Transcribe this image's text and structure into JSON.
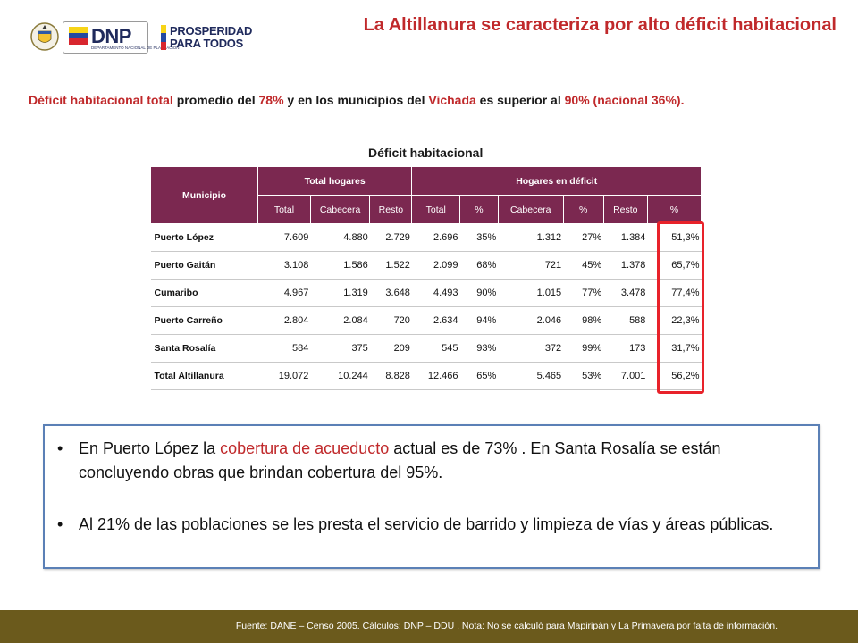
{
  "header": {
    "dnp_logo_text": "DNP",
    "dnp_logo_subtext": "DEPARTAMENTO NACIONAL DE PLANEACIÓN",
    "prosperidad_line1": "PROSPERIDAD",
    "prosperidad_line2": "PARA TODOS",
    "title": "La Altillanura se caracteriza por alto déficit habitacional"
  },
  "subtitle": {
    "part1": "Déficit habitacional total",
    "part2": " promedio del ",
    "part3": "78%",
    "part4": " y en los municipios del ",
    "part5": "Vichada",
    "part6": " es superior al ",
    "part7": "90% (nacional 36%)."
  },
  "table": {
    "title": "Déficit habitacional",
    "header_municipio": "Municipio",
    "header_total_hogares": "Total hogares",
    "header_hogares_deficit": "Hogares en déficit",
    "subheaders": [
      "Total",
      "Cabecera",
      "Resto",
      "Total",
      "%",
      "Cabecera",
      "%",
      "Resto",
      "%"
    ],
    "rows": [
      {
        "municipio": "Puerto López",
        "values": [
          "7.609",
          "4.880",
          "2.729",
          "2.696",
          "35%",
          "1.312",
          "27%",
          "1.384",
          "51,3%"
        ]
      },
      {
        "municipio": "Puerto Gaitán",
        "values": [
          "3.108",
          "1.586",
          "1.522",
          "2.099",
          "68%",
          "721",
          "45%",
          "1.378",
          "65,7%"
        ]
      },
      {
        "municipio": "Cumaribo",
        "values": [
          "4.967",
          "1.319",
          "3.648",
          "4.493",
          "90%",
          "1.015",
          "77%",
          "3.478",
          "77,4%"
        ]
      },
      {
        "municipio": "Puerto Carreño",
        "values": [
          "2.804",
          "2.084",
          "720",
          "2.634",
          "94%",
          "2.046",
          "98%",
          "588",
          "22,3%"
        ]
      },
      {
        "municipio": "Santa Rosalía",
        "values": [
          "584",
          "375",
          "209",
          "545",
          "93%",
          "372",
          "99%",
          "173",
          "31,7%"
        ]
      },
      {
        "municipio": "Total  Altillanura",
        "values": [
          "19.072",
          "10.244",
          "8.828",
          "12.466",
          "65%",
          "5.465",
          "53%",
          "7.001",
          "56,2%"
        ]
      }
    ]
  },
  "bullets": {
    "b1_part1": "En Puerto López la ",
    "b1_part2": "cobertura de acueducto",
    "b1_part3": " actual es de 73% .  En Santa Rosalía se están concluyendo obras que brindan cobertura del 95%.",
    "b2": "Al 21% de las poblaciones se les presta el servicio de barrido y limpieza de vías y áreas públicas."
  },
  "footer": {
    "text": "Fuente:  DANE – Censo 2005. Cálculos: DNP – DDU . Nota: No se calculó para Mapiripán y La Primavera por falta de información."
  },
  "colors": {
    "accent_red": "#c0292b",
    "table_header": "#7b2850",
    "highlight_box": "#e8222a",
    "bullet_box_border": "#5b80b6",
    "footer_bg": "#6b5a1c"
  }
}
